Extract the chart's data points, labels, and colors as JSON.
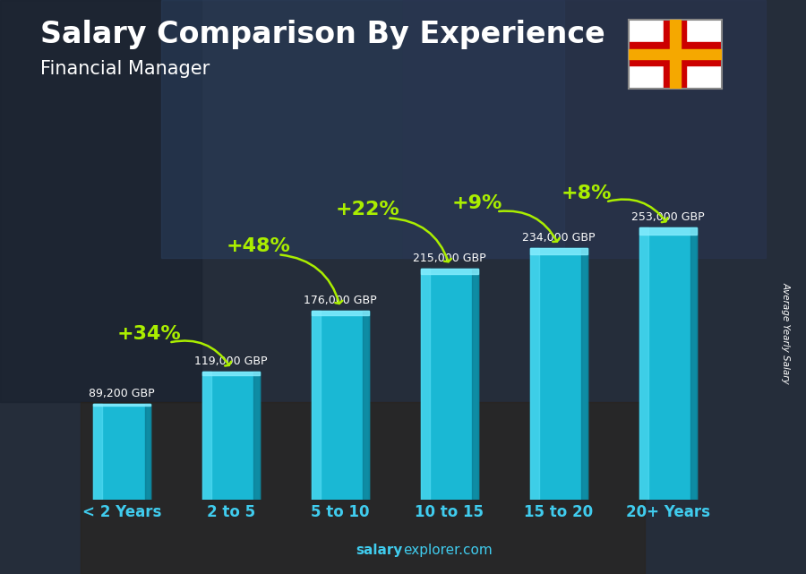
{
  "title": "Salary Comparison By Experience",
  "subtitle": "Financial Manager",
  "ylabel": "Average Yearly Salary",
  "xlabel_labels": [
    "< 2 Years",
    "2 to 5",
    "5 to 10",
    "10 to 15",
    "15 to 20",
    "20+ Years"
  ],
  "values": [
    89200,
    119000,
    176000,
    215000,
    234000,
    253000
  ],
  "salary_labels": [
    "89,200 GBP",
    "119,000 GBP",
    "176,000 GBP",
    "215,000 GBP",
    "234,000 GBP",
    "253,000 GBP"
  ],
  "pct_labels": [
    "+34%",
    "+48%",
    "+22%",
    "+9%",
    "+8%"
  ],
  "bar_color": "#1ab8d4",
  "bar_highlight": "#5de0f5",
  "bar_shadow": "#0d7a90",
  "bg_color": "#1e2533",
  "pct_color": "#aaee00",
  "salary_color": "#ffffff",
  "title_color": "#ffffff",
  "subtitle_color": "#ffffff",
  "xtick_color": "#40ccee",
  "watermark_color": "#40ccee",
  "ylim": [
    0,
    310000
  ],
  "bar_width": 0.52,
  "pct_fontsize": 16,
  "salary_fontsize": 9,
  "title_fontsize": 24,
  "subtitle_fontsize": 15,
  "xtick_fontsize": 12,
  "pct_text_offsets": [
    0.5,
    0.5,
    0.5,
    0.5,
    0.5
  ],
  "pct_y_offsets": [
    35000,
    60000,
    55000,
    42000,
    32000
  ]
}
